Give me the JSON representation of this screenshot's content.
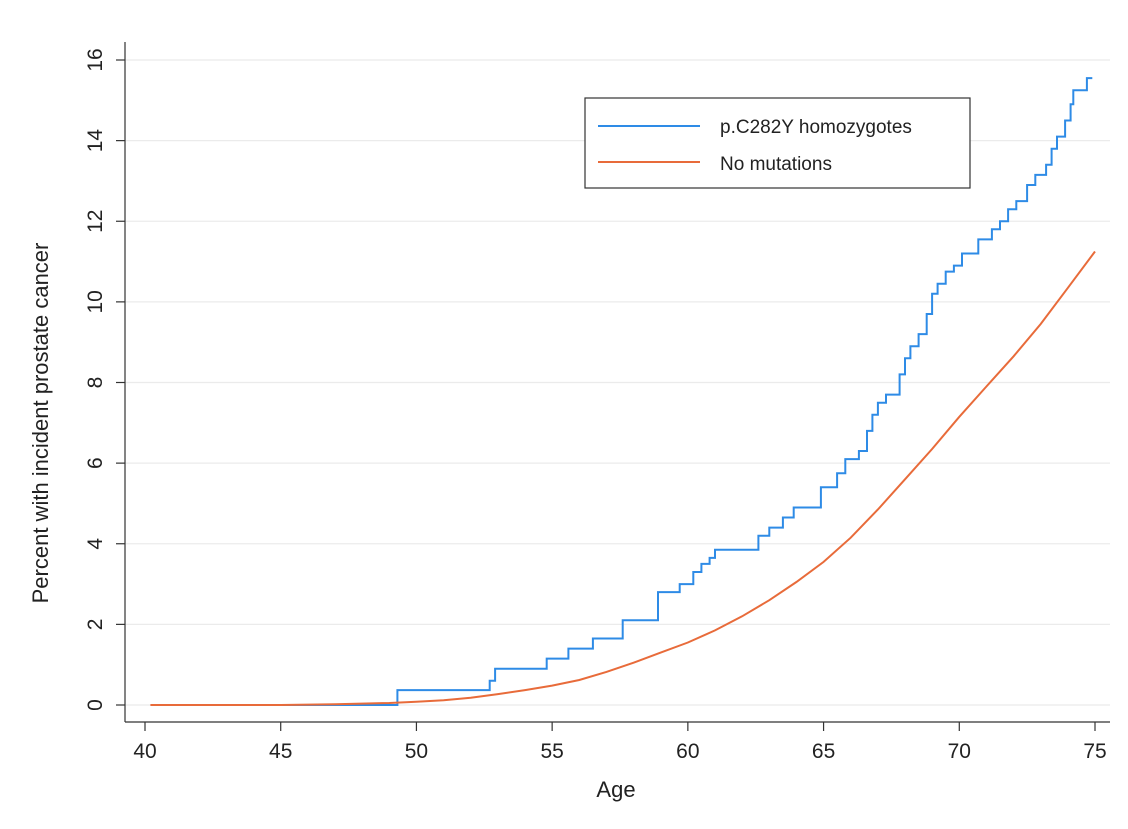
{
  "chart_data": {
    "type": "line",
    "title": "",
    "xlabel": "Age",
    "ylabel": "Percent with incident prostate cancer",
    "xlim": [
      40,
      75
    ],
    "ylim": [
      0,
      16
    ],
    "xticks": [
      40,
      45,
      50,
      55,
      60,
      65,
      70,
      75
    ],
    "yticks": [
      0,
      2,
      4,
      6,
      8,
      10,
      12,
      14,
      16
    ],
    "grid": "horizontal",
    "legend": {
      "position": "top-right",
      "entries": [
        "p.C282Y homozygotes",
        "No mutations"
      ]
    },
    "series": [
      {
        "name": "p.C282Y homozygotes",
        "color": "#2e8be6",
        "style": "step",
        "points": [
          [
            40.3,
            0.0
          ],
          [
            49.3,
            0.0
          ],
          [
            49.3,
            0.37
          ],
          [
            52.7,
            0.37
          ],
          [
            52.7,
            0.6
          ],
          [
            52.9,
            0.6
          ],
          [
            52.9,
            0.9
          ],
          [
            54.8,
            0.9
          ],
          [
            54.8,
            1.15
          ],
          [
            55.6,
            1.15
          ],
          [
            55.6,
            1.4
          ],
          [
            56.5,
            1.4
          ],
          [
            56.5,
            1.65
          ],
          [
            57.6,
            1.65
          ],
          [
            57.6,
            2.1
          ],
          [
            58.9,
            2.1
          ],
          [
            58.9,
            2.8
          ],
          [
            59.7,
            2.8
          ],
          [
            59.7,
            3.0
          ],
          [
            60.2,
            3.0
          ],
          [
            60.2,
            3.3
          ],
          [
            60.5,
            3.3
          ],
          [
            60.5,
            3.5
          ],
          [
            60.8,
            3.5
          ],
          [
            60.8,
            3.65
          ],
          [
            61.0,
            3.65
          ],
          [
            61.0,
            3.85
          ],
          [
            62.6,
            3.85
          ],
          [
            62.6,
            4.2
          ],
          [
            63.0,
            4.2
          ],
          [
            63.0,
            4.4
          ],
          [
            63.5,
            4.4
          ],
          [
            63.5,
            4.65
          ],
          [
            63.9,
            4.65
          ],
          [
            63.9,
            4.9
          ],
          [
            64.9,
            4.9
          ],
          [
            64.9,
            5.4
          ],
          [
            65.5,
            5.4
          ],
          [
            65.5,
            5.75
          ],
          [
            65.8,
            5.75
          ],
          [
            65.8,
            6.1
          ],
          [
            66.3,
            6.1
          ],
          [
            66.3,
            6.3
          ],
          [
            66.6,
            6.3
          ],
          [
            66.6,
            6.8
          ],
          [
            66.8,
            6.8
          ],
          [
            66.8,
            7.2
          ],
          [
            67.0,
            7.2
          ],
          [
            67.0,
            7.5
          ],
          [
            67.3,
            7.5
          ],
          [
            67.3,
            7.7
          ],
          [
            67.8,
            7.7
          ],
          [
            67.8,
            8.2
          ],
          [
            68.0,
            8.2
          ],
          [
            68.0,
            8.6
          ],
          [
            68.2,
            8.6
          ],
          [
            68.2,
            8.9
          ],
          [
            68.5,
            8.9
          ],
          [
            68.5,
            9.2
          ],
          [
            68.8,
            9.2
          ],
          [
            68.8,
            9.7
          ],
          [
            69.0,
            9.7
          ],
          [
            69.0,
            10.2
          ],
          [
            69.2,
            10.2
          ],
          [
            69.2,
            10.45
          ],
          [
            69.5,
            10.45
          ],
          [
            69.5,
            10.75
          ],
          [
            69.8,
            10.75
          ],
          [
            69.8,
            10.9
          ],
          [
            70.1,
            10.9
          ],
          [
            70.1,
            11.2
          ],
          [
            70.7,
            11.2
          ],
          [
            70.7,
            11.55
          ],
          [
            71.2,
            11.55
          ],
          [
            71.2,
            11.8
          ],
          [
            71.5,
            11.8
          ],
          [
            71.5,
            12.0
          ],
          [
            71.8,
            12.0
          ],
          [
            71.8,
            12.3
          ],
          [
            72.1,
            12.3
          ],
          [
            72.1,
            12.5
          ],
          [
            72.5,
            12.5
          ],
          [
            72.5,
            12.9
          ],
          [
            72.8,
            12.9
          ],
          [
            72.8,
            13.15
          ],
          [
            73.2,
            13.15
          ],
          [
            73.2,
            13.4
          ],
          [
            73.4,
            13.4
          ],
          [
            73.4,
            13.8
          ],
          [
            73.6,
            13.8
          ],
          [
            73.6,
            14.1
          ],
          [
            73.9,
            14.1
          ],
          [
            73.9,
            14.5
          ],
          [
            74.1,
            14.5
          ],
          [
            74.1,
            14.9
          ],
          [
            74.2,
            14.9
          ],
          [
            74.2,
            15.25
          ],
          [
            74.7,
            15.25
          ],
          [
            74.7,
            15.55
          ],
          [
            74.9,
            15.55
          ]
        ]
      },
      {
        "name": "No mutations",
        "color": "#e86b3a",
        "style": "smooth",
        "points": [
          [
            40.2,
            0.0
          ],
          [
            45.0,
            0.0
          ],
          [
            47.0,
            0.02
          ],
          [
            49.0,
            0.05
          ],
          [
            50.0,
            0.08
          ],
          [
            51.0,
            0.12
          ],
          [
            52.0,
            0.18
          ],
          [
            53.0,
            0.27
          ],
          [
            54.0,
            0.37
          ],
          [
            55.0,
            0.48
          ],
          [
            56.0,
            0.62
          ],
          [
            57.0,
            0.82
          ],
          [
            58.0,
            1.05
          ],
          [
            59.0,
            1.3
          ],
          [
            60.0,
            1.55
          ],
          [
            61.0,
            1.85
          ],
          [
            62.0,
            2.2
          ],
          [
            63.0,
            2.6
          ],
          [
            64.0,
            3.05
          ],
          [
            65.0,
            3.55
          ],
          [
            66.0,
            4.15
          ],
          [
            67.0,
            4.85
          ],
          [
            68.0,
            5.6
          ],
          [
            69.0,
            6.35
          ],
          [
            70.0,
            7.15
          ],
          [
            71.0,
            7.9
          ],
          [
            72.0,
            8.65
          ],
          [
            73.0,
            9.45
          ],
          [
            74.0,
            10.35
          ],
          [
            75.0,
            11.25
          ]
        ]
      }
    ]
  }
}
